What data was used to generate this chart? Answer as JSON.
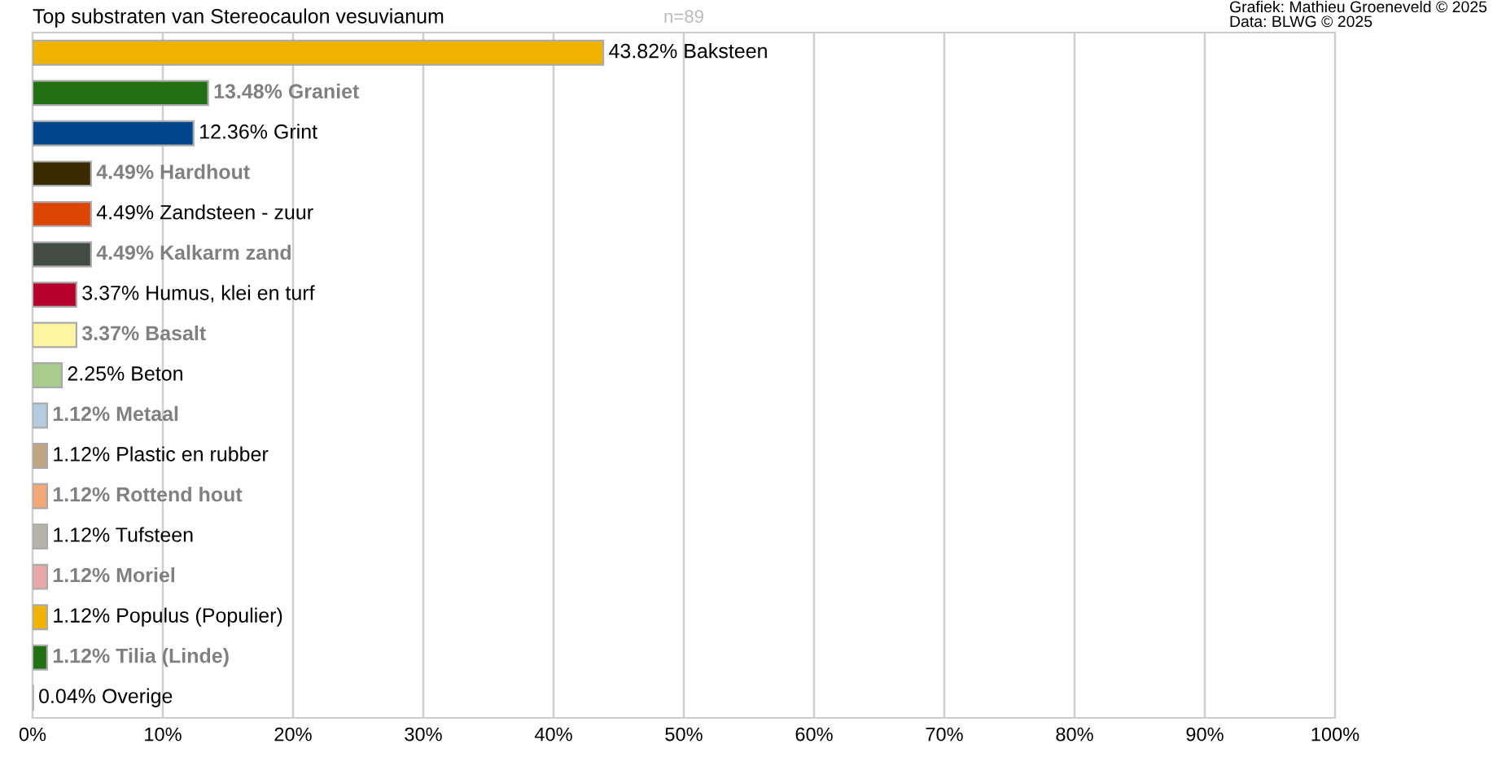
{
  "chart_data": {
    "type": "bar",
    "orientation": "horizontal",
    "title": "Top substraten van Stereocaulon vesuvianum",
    "subtitle": "n=89",
    "annotations": [
      "Grafiek: Mathieu Groeneveld © 2025",
      "Data: BLWG © 2025"
    ],
    "categories": [
      null,
      null,
      null,
      null,
      null,
      null,
      null,
      null,
      null,
      null,
      null,
      null,
      null,
      null,
      null,
      null,
      null
    ],
    "values": [
      43.82,
      13.48,
      12.36,
      4.49,
      4.49,
      4.49,
      3.37,
      3.37,
      2.25,
      1.12,
      1.12,
      1.12,
      1.12,
      1.12,
      1.12,
      1.12,
      0.04
    ],
    "colors": [
      "#f0b400",
      "#217012",
      "#00468c",
      "#3a2a00",
      "#dc4600",
      "#434c43",
      "#b4002a",
      "#fff5a0",
      "#a8cc8c",
      "#b4cce0",
      "#c0a680",
      "#f4a878",
      "#b4b4a8",
      "#e8a8a8",
      "#f0b400",
      "#217012",
      "#d0d0d0"
    ],
    "value_labels": [
      "43.82% Baksteen",
      "13.48% Graniet",
      "12.36% Grint",
      "4.49% Hardhout",
      "4.49% Zandsteen - zuur",
      "4.49% Kalkarm zand",
      "3.37% Humus, klei en turf",
      "3.37% Basalt",
      "2.25% Beton",
      "1.12% Metaal",
      "1.12% Plastic en rubber",
      "1.12% Rottend hout",
      "1.12% Tufsteen",
      "1.12% Moriel",
      "1.12% Populus (Populier)",
      "1.12% Tilia (Linde)",
      "0.04% Overige"
    ],
    "xlim": [
      0,
      100
    ],
    "xticks": [
      {
        "value": 0,
        "label": "0%"
      },
      {
        "value": 10,
        "label": "10%"
      },
      {
        "value": 20,
        "label": "20%"
      },
      {
        "value": 30,
        "label": "30%"
      },
      {
        "value": 40,
        "label": "40%"
      },
      {
        "value": 50,
        "label": "50%"
      },
      {
        "value": 60,
        "label": "60%"
      },
      {
        "value": 70,
        "label": "70%"
      },
      {
        "value": 80,
        "label": "80%"
      },
      {
        "value": 90,
        "label": "90%"
      },
      {
        "value": 100,
        "label": "100%"
      }
    ],
    "tick_labels": "x",
    "grid": "x",
    "legend": false
  }
}
